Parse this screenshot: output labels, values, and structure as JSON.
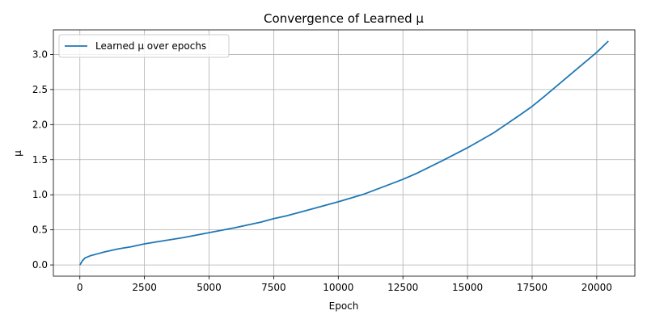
{
  "chart_data": {
    "type": "line",
    "title": "Convergence of Learned μ",
    "xlabel": "Epoch",
    "ylabel": "μ",
    "xlim": [
      -1025,
      21475
    ],
    "ylim": [
      -0.16,
      3.35
    ],
    "x_ticks": [
      0,
      2500,
      5000,
      7500,
      10000,
      12500,
      15000,
      17500,
      20000
    ],
    "x_tick_labels": [
      "0",
      "2500",
      "5000",
      "7500",
      "10000",
      "12500",
      "15000",
      "17500",
      "20000"
    ],
    "y_ticks": [
      0.0,
      0.5,
      1.0,
      1.5,
      2.0,
      2.5,
      3.0
    ],
    "y_tick_labels": [
      "0.0",
      "0.5",
      "1.0",
      "1.5",
      "2.0",
      "2.5",
      "3.0"
    ],
    "grid": true,
    "legend_position": "top-left",
    "series": [
      {
        "name": "Learned μ over epochs",
        "color": "#1f77b4",
        "x": [
          0,
          100,
          200,
          400,
          700,
          1000,
          1500,
          2000,
          2500,
          3000,
          4000,
          5000,
          6000,
          7000,
          7500,
          8000,
          9000,
          10000,
          11000,
          12000,
          12500,
          13000,
          14000,
          15000,
          16000,
          17000,
          17500,
          18000,
          19000,
          20000,
          20450
        ],
        "y": [
          0.0,
          0.06,
          0.1,
          0.13,
          0.16,
          0.19,
          0.23,
          0.26,
          0.3,
          0.33,
          0.39,
          0.46,
          0.53,
          0.61,
          0.66,
          0.7,
          0.8,
          0.9,
          1.01,
          1.15,
          1.22,
          1.3,
          1.48,
          1.67,
          1.88,
          2.13,
          2.26,
          2.41,
          2.72,
          3.03,
          3.19
        ]
      }
    ]
  }
}
